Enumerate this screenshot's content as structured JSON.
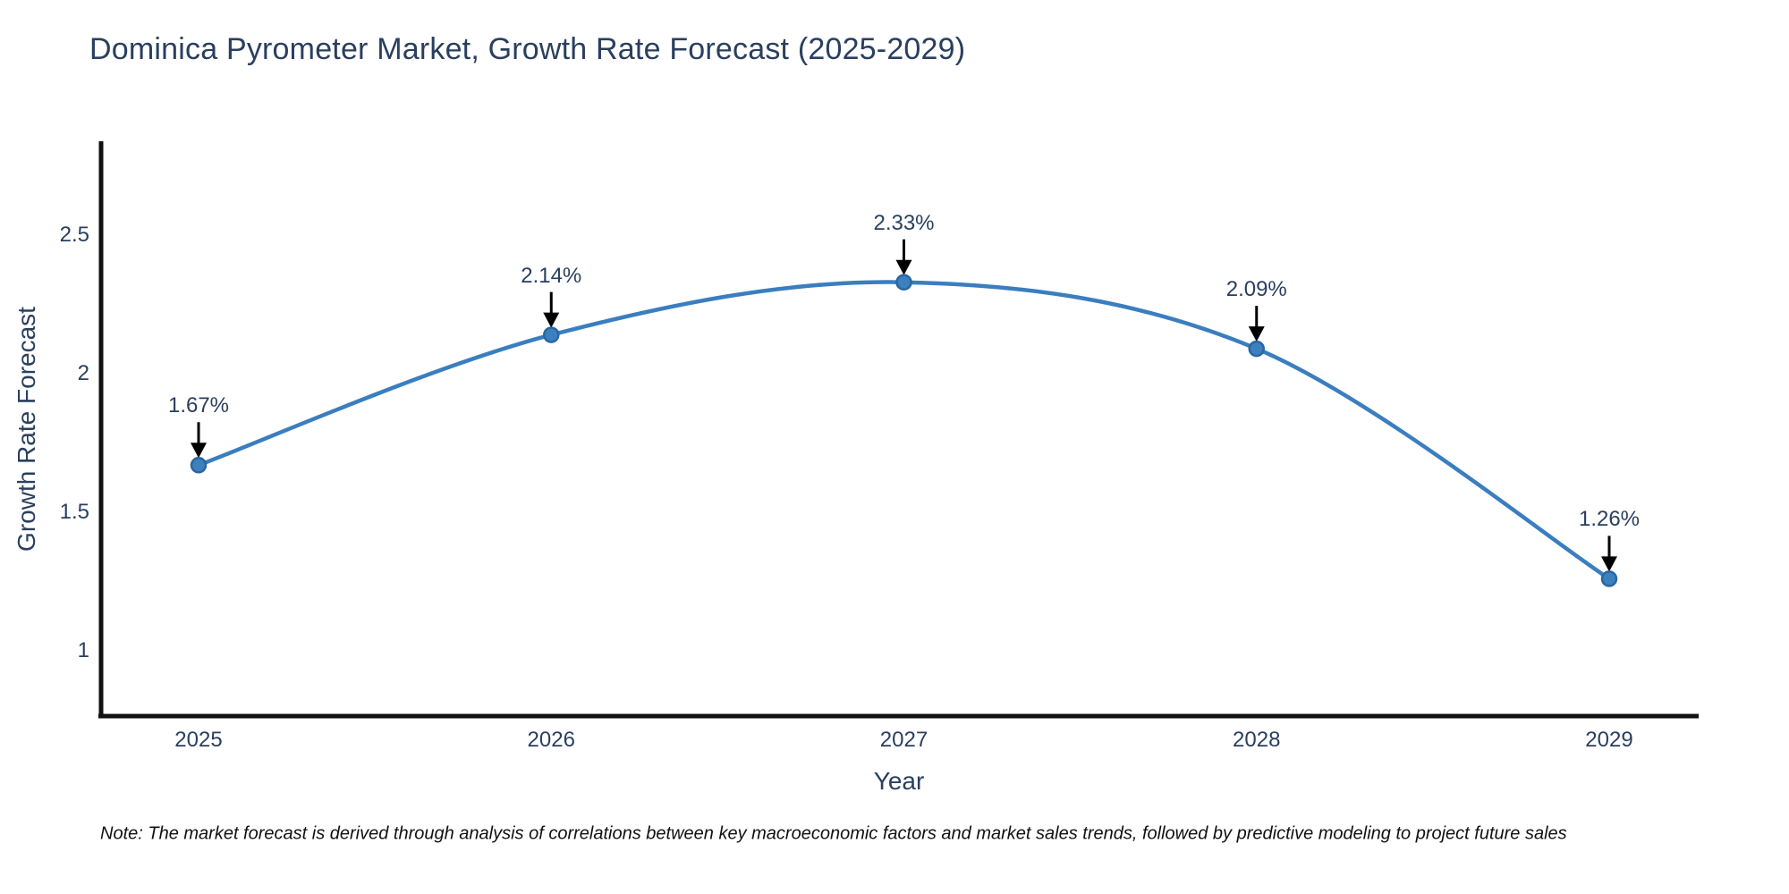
{
  "note": "Note: The market forecast is derived through analysis of correlations between key macroeconomic factors and market sales trends, followed by predictive modeling to project future sales",
  "chart_data": {
    "type": "line",
    "title": "Dominica Pyrometer Market, Growth Rate Forecast (2025-2029)",
    "x": [
      "2025",
      "2026",
      "2027",
      "2028",
      "2029"
    ],
    "values": [
      1.67,
      2.14,
      2.33,
      2.09,
      1.26
    ],
    "point_labels": [
      "1.67%",
      "2.14%",
      "2.33%",
      "2.09%",
      "1.26%"
    ],
    "xlabel": "Year",
    "ylabel": "Growth Rate Forecast",
    "y_tick_values": [
      2.5,
      2,
      1.5,
      1
    ],
    "y_tick_labels": [
      "2.5",
      "2",
      "1.5",
      "1"
    ],
    "ylim": [
      0.76,
      2.83
    ],
    "line_shape": "spline",
    "grid": false,
    "legend_position": "none",
    "annotation_style": "value label above point with downward black arrow",
    "colors": {
      "line": "#3a7ebf",
      "marker_fill": "#3d80c0",
      "marker_edge": "#28679f",
      "axis_line": "#111111",
      "text": "#2a3f5f",
      "annotation_arrow": "#000000",
      "note_text": "#111111",
      "background": "#ffffff"
    }
  }
}
